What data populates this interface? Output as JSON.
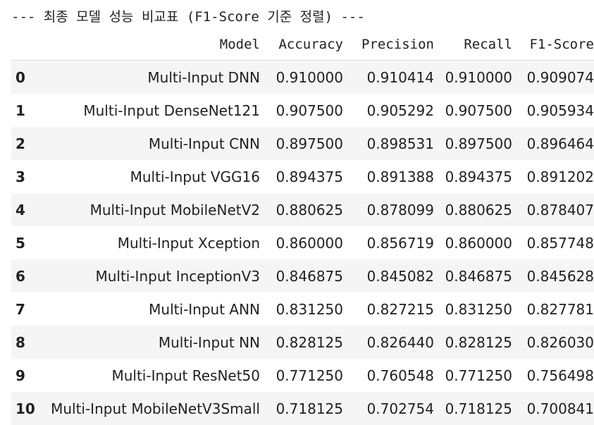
{
  "title": "--- 최종 모델 성능 비교표 (F1-Score 기준 정렬) ---",
  "table": {
    "columns": [
      "",
      "Model",
      "Accuracy",
      "Precision",
      "Recall",
      "F1-Score"
    ],
    "rows": [
      {
        "index": "0",
        "model": "Multi-Input DNN",
        "accuracy": "0.910000",
        "precision": "0.910414",
        "recall": "0.910000",
        "f1": "0.909074"
      },
      {
        "index": "1",
        "model": "Multi-Input DenseNet121",
        "accuracy": "0.907500",
        "precision": "0.905292",
        "recall": "0.907500",
        "f1": "0.905934"
      },
      {
        "index": "2",
        "model": "Multi-Input CNN",
        "accuracy": "0.897500",
        "precision": "0.898531",
        "recall": "0.897500",
        "f1": "0.896464"
      },
      {
        "index": "3",
        "model": "Multi-Input VGG16",
        "accuracy": "0.894375",
        "precision": "0.891388",
        "recall": "0.894375",
        "f1": "0.891202"
      },
      {
        "index": "4",
        "model": "Multi-Input MobileNetV2",
        "accuracy": "0.880625",
        "precision": "0.878099",
        "recall": "0.880625",
        "f1": "0.878407"
      },
      {
        "index": "5",
        "model": "Multi-Input Xception",
        "accuracy": "0.860000",
        "precision": "0.856719",
        "recall": "0.860000",
        "f1": "0.857748"
      },
      {
        "index": "6",
        "model": "Multi-Input InceptionV3",
        "accuracy": "0.846875",
        "precision": "0.845082",
        "recall": "0.846875",
        "f1": "0.845628"
      },
      {
        "index": "7",
        "model": "Multi-Input ANN",
        "accuracy": "0.831250",
        "precision": "0.827215",
        "recall": "0.831250",
        "f1": "0.827781"
      },
      {
        "index": "8",
        "model": "Multi-Input NN",
        "accuracy": "0.828125",
        "precision": "0.826440",
        "recall": "0.828125",
        "f1": "0.826030"
      },
      {
        "index": "9",
        "model": "Multi-Input ResNet50",
        "accuracy": "0.771250",
        "precision": "0.760548",
        "recall": "0.771250",
        "f1": "0.756498"
      },
      {
        "index": "10",
        "model": "Multi-Input MobileNetV3Small",
        "accuracy": "0.718125",
        "precision": "0.702754",
        "recall": "0.718125",
        "f1": "0.700841"
      }
    ]
  }
}
